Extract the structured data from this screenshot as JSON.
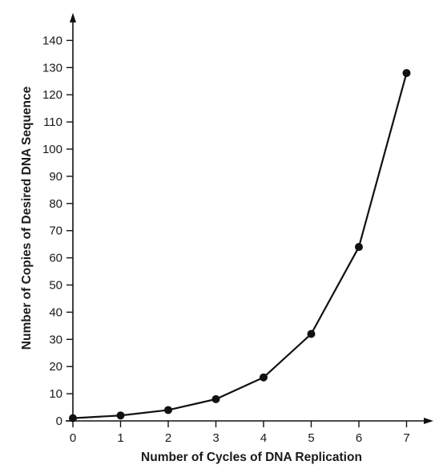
{
  "chart_data": {
    "type": "line",
    "title": "",
    "xlabel": "Number of Cycles of DNA Replication",
    "ylabel": "Number of Copies of Desired DNA Sequence",
    "x": [
      0,
      1,
      2,
      3,
      4,
      5,
      6,
      7
    ],
    "series": [
      {
        "values": [
          1,
          2,
          4,
          8,
          16,
          32,
          64,
          128
        ]
      }
    ],
    "xticks": [
      "0",
      "1",
      "2",
      "3",
      "4",
      "5",
      "6",
      "7"
    ],
    "yticks": [
      "0",
      "10",
      "20",
      "30",
      "40",
      "50",
      "60",
      "70",
      "80",
      "90",
      "100",
      "110",
      "120",
      "130",
      "140"
    ],
    "xlim": [
      0,
      7
    ],
    "ylim": [
      0,
      140
    ],
    "grid": false,
    "legend": "none",
    "colors": {
      "line": "#111111",
      "marker": "#111111",
      "axis": "#111111"
    }
  }
}
